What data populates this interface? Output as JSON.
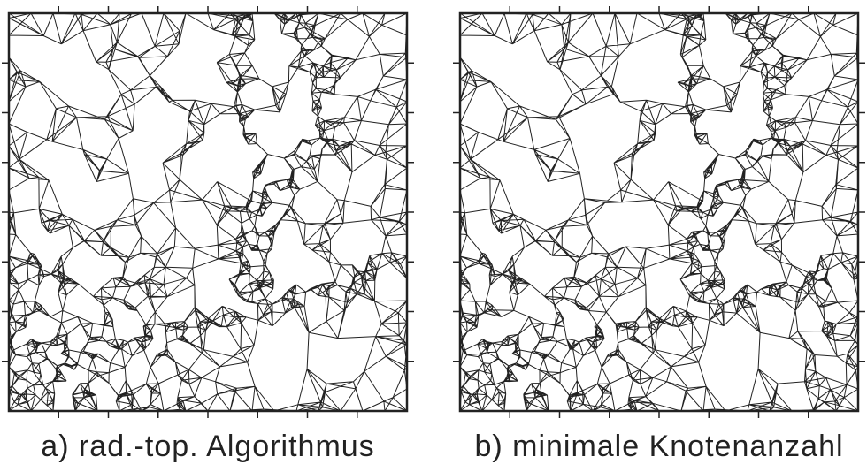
{
  "panels": [
    {
      "caption": "a) rad.-top. Algorithmus"
    },
    {
      "caption": "b) minimale Knotenanzahl"
    }
  ]
}
